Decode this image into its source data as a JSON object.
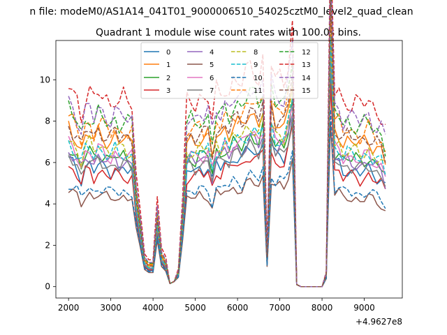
{
  "chart_data": {
    "type": "line",
    "suptitle": "n file: modeM0/AS1A14_041T01_9000006510_54025cztM0_level2_quad_clean",
    "title": "Quadrant 1 module wise count rates with 100.0s bins.",
    "xlabel": "",
    "ylabel": "",
    "x_offset_label": "+4.9627e8",
    "xlim": [
      1700,
      9900
    ],
    "ylim": [
      -0.55,
      11.9
    ],
    "x_ticks": [
      2000,
      3000,
      4000,
      5000,
      6000,
      7000,
      8000,
      9000
    ],
    "x_tick_labels": [
      "2000",
      "3000",
      "4000",
      "5000",
      "6000",
      "7000",
      "8000",
      "9000"
    ],
    "y_ticks": [
      0,
      2,
      4,
      6,
      8,
      10
    ],
    "y_tick_labels": [
      "0",
      "2",
      "4",
      "6",
      "8",
      "10"
    ],
    "legend": {
      "location": "upper center",
      "ncol": 4
    },
    "x": [
      2000,
      2100,
      2200,
      2300,
      2400,
      2500,
      2600,
      2700,
      2800,
      2900,
      3000,
      3100,
      3200,
      3300,
      3400,
      3500,
      3600,
      3700,
      3800,
      3900,
      4000,
      4100,
      4200,
      4300,
      4400,
      4500,
      4600,
      4700,
      4800,
      4900,
      5000,
      5100,
      5200,
      5300,
      5400,
      5500,
      5600,
      5700,
      5800,
      5900,
      6000,
      6100,
      6200,
      6300,
      6400,
      6500,
      6600,
      6700,
      6800,
      6900,
      7000,
      7100,
      7200,
      7300,
      7400,
      7500,
      7600,
      7700,
      7800,
      7900,
      8000,
      8100,
      8200,
      8300,
      8400,
      8500,
      8600,
      8700,
      8800,
      8900,
      9000,
      9100,
      9200,
      9300,
      9400,
      9500
    ],
    "base_profile": [
      5.5,
      5.3,
      5.1,
      4.7,
      5.2,
      5.3,
      5.0,
      5.3,
      5.2,
      5.1,
      5.0,
      5.2,
      5.0,
      5.1,
      5.0,
      5.0,
      3.8,
      2.5,
      1.1,
      0.9,
      0.9,
      3.0,
      1.3,
      1.0,
      0.15,
      0.25,
      0.6,
      3.0,
      5.0,
      5.1,
      5.0,
      5.2,
      5.1,
      5.2,
      4.5,
      5.3,
      5.2,
      5.5,
      5.3,
      5.6,
      5.6,
      5.5,
      5.8,
      6.0,
      5.9,
      5.7,
      6.2,
      1.3,
      6.1,
      5.6,
      5.7,
      5.6,
      6.2,
      7.2,
      0.1,
      0.0,
      0.0,
      0.0,
      0.0,
      0.0,
      0.0,
      0.5,
      9.5,
      5.3,
      5.3,
      5.0,
      5.1,
      5.0,
      5.0,
      4.9,
      5.0,
      5.1,
      4.9,
      4.8,
      4.7,
      4.3
    ],
    "series": [
      {
        "name": "0",
        "color": "#1f77b4",
        "dash": "solid",
        "level": 5.9,
        "valley": 0.85
      },
      {
        "name": "1",
        "color": "#ff7f0e",
        "dash": "solid",
        "level": 7.4,
        "valley": 1.15
      },
      {
        "name": "2",
        "color": "#2ca02c",
        "dash": "solid",
        "level": 6.5,
        "valley": 0.95
      },
      {
        "name": "3",
        "color": "#d62728",
        "dash": "solid",
        "level": 5.6,
        "valley": 0.9
      },
      {
        "name": "4",
        "color": "#9467bd",
        "dash": "solid",
        "level": 6.3,
        "valley": 1.0
      },
      {
        "name": "5",
        "color": "#8c564b",
        "dash": "solid",
        "level": 4.5,
        "valley": 0.75
      },
      {
        "name": "6",
        "color": "#e377c2",
        "dash": "solid",
        "level": 6.6,
        "valley": 0.95
      },
      {
        "name": "7",
        "color": "#7f7f7f",
        "dash": "solid",
        "level": 6.1,
        "valley": 0.95
      },
      {
        "name": "8",
        "color": "#bcbd22",
        "dash": "dashed",
        "level": 6.9,
        "valley": 1.05
      },
      {
        "name": "9",
        "color": "#17becf",
        "dash": "dashed",
        "level": 6.7,
        "valley": 1.0
      },
      {
        "name": "10",
        "color": "#1f77b4",
        "dash": "dashed",
        "level": 4.8,
        "valley": 0.8
      },
      {
        "name": "11",
        "color": "#ff7f0e",
        "dash": "dashed",
        "level": 7.9,
        "valley": 1.2
      },
      {
        "name": "12",
        "color": "#2ca02c",
        "dash": "dashed",
        "level": 8.3,
        "valley": 1.25
      },
      {
        "name": "13",
        "color": "#d62728",
        "dash": "dashed",
        "level": 9.4,
        "valley": 1.45
      },
      {
        "name": "14",
        "color": "#9467bd",
        "dash": "dashed",
        "level": 8.6,
        "valley": 1.3
      },
      {
        "name": "15",
        "color": "#8c564b",
        "dash": "dashed",
        "level": 7.6,
        "valley": 1.1
      }
    ]
  }
}
